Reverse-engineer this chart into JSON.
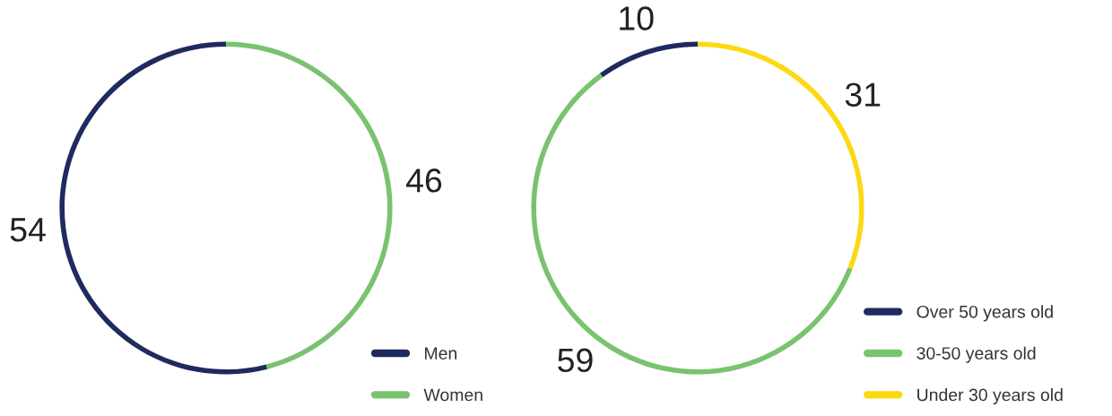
{
  "chart_data": [
    {
      "type": "donut",
      "categories": [
        "Men",
        "Women"
      ],
      "values": [
        54,
        46
      ],
      "colors": [
        "#1f2a5e",
        "#79c36e"
      ],
      "data_labels": true,
      "legend": "bottom right"
    },
    {
      "type": "donut",
      "categories": [
        "Over 50 years old",
        "30-50 years old",
        "Under 30 years old"
      ],
      "values": [
        10,
        59,
        31
      ],
      "colors": [
        "#1f2a5e",
        "#79c36e",
        "#fcd912"
      ],
      "data_labels": true,
      "legend": "bottom right"
    }
  ]
}
